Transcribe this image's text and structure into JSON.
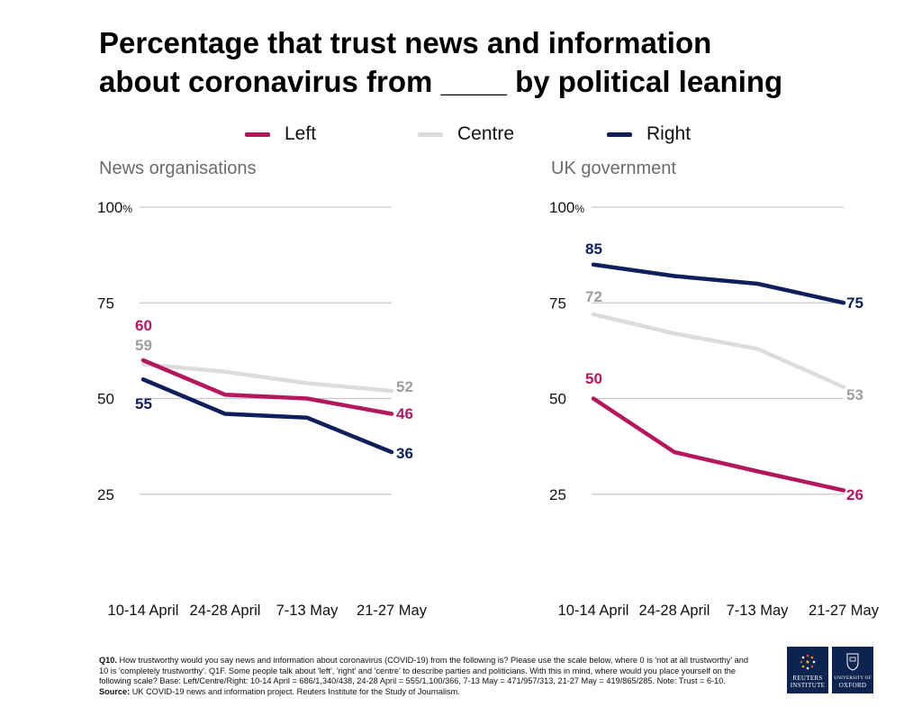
{
  "title": {
    "line1": "Percentage that trust news and information",
    "line2": "about coronavirus from ____ by political leaning"
  },
  "legend": [
    {
      "label": "Left",
      "color": "#b5175f"
    },
    {
      "label": "Centre",
      "color": "#dcdcdc"
    },
    {
      "label": "Right",
      "color": "#0e1f5b"
    }
  ],
  "chart_data": [
    {
      "type": "line",
      "title": "News organisations",
      "categories": [
        "10-14 April",
        "24-28 April",
        "7-13 May",
        "21-27 May"
      ],
      "ylim": [
        0,
        100
      ],
      "yticks": [
        25,
        50,
        75,
        100
      ],
      "ytick_labels": [
        "25",
        "50",
        "75",
        "100%"
      ],
      "series": [
        {
          "name": "Left",
          "values": [
            60,
            51,
            50,
            46
          ],
          "labels": [
            "60",
            null,
            null,
            "46"
          ]
        },
        {
          "name": "Centre",
          "values": [
            59,
            57,
            54,
            52
          ],
          "labels": [
            "59",
            null,
            null,
            "52"
          ]
        },
        {
          "name": "Right",
          "values": [
            55,
            46,
            45,
            36
          ],
          "labels": [
            "55",
            null,
            null,
            "36"
          ]
        }
      ]
    },
    {
      "type": "line",
      "title": "UK government",
      "categories": [
        "10-14 April",
        "24-28 April",
        "7-13 May",
        "21-27 May"
      ],
      "ylim": [
        0,
        100
      ],
      "yticks": [
        25,
        50,
        75,
        100
      ],
      "ytick_labels": [
        "25",
        "50",
        "75",
        "100%"
      ],
      "series": [
        {
          "name": "Left",
          "values": [
            50,
            36,
            31,
            26
          ],
          "labels": [
            "50",
            null,
            null,
            "26"
          ]
        },
        {
          "name": "Centre",
          "values": [
            72,
            67,
            63,
            53
          ],
          "labels": [
            "72",
            null,
            null,
            "53"
          ]
        },
        {
          "name": "Right",
          "values": [
            85,
            82,
            80,
            75
          ],
          "labels": [
            "85",
            null,
            null,
            "75"
          ]
        }
      ]
    }
  ],
  "label_colors": {
    "Left": "#b5175f",
    "Centre": "#9e9e9e",
    "Right": "#0e1f5b"
  },
  "footnote": {
    "q_label": "Q10.",
    "text1": " How trustworthy would you say news and information about coronavirus (COVID-19) from the following is? Please use the scale below, where 0 is 'not at all trustworthy' and 10 is 'completely trustworthy'. Q1F. Some people talk about 'left', 'right' and 'centre' to describe parties and politicians. With this in mind, where would you place yourself on the following scale? Base: Left/Centre/Right: 10-14 April = 686/1,340/438, 24-28 April = 555/1,100/366, 7-13 May = 471/957/313, 21-27 May = 419/865/285. Note: Trust = 6-10. ",
    "source_label": "Source:",
    "text2": " UK COVID-19 news and information project. Reuters Institute for the Study of Journalism."
  },
  "logos": {
    "reuters": "REUTERS INSTITUTE",
    "oxford_small": "UNIVERSITY OF",
    "oxford": "OXFORD"
  }
}
